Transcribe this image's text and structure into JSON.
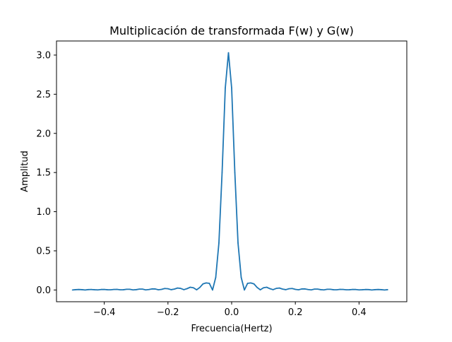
{
  "chart_data": {
    "type": "line",
    "title": "Multiplicación de transformada F(w) y G(w)",
    "xlabel": "Frecuencia(Hertz)",
    "ylabel": "Amplitud",
    "xlim": [
      -0.55,
      0.55
    ],
    "ylim": [
      -0.15,
      3.18
    ],
    "xticks": [
      -0.4,
      -0.2,
      0.0,
      0.2,
      0.4
    ],
    "xtick_labels": [
      "−0.4",
      "−0.2",
      "0.0",
      "0.2",
      "0.4"
    ],
    "yticks": [
      0.0,
      0.5,
      1.0,
      1.5,
      2.0,
      2.5,
      3.0
    ],
    "ytick_labels": [
      "0.0",
      "0.5",
      "1.0",
      "1.5",
      "2.0",
      "2.5",
      "3.0"
    ],
    "grid": false,
    "legend": "none",
    "series": [
      {
        "color": "#1f77b4",
        "x": [
          -0.5,
          -0.49,
          -0.48,
          -0.47,
          -0.46,
          -0.45,
          -0.44,
          -0.43,
          -0.42,
          -0.41,
          -0.4,
          -0.39,
          -0.38,
          -0.37,
          -0.36,
          -0.35,
          -0.34,
          -0.33,
          -0.32,
          -0.31,
          -0.3,
          -0.29,
          -0.28,
          -0.27,
          -0.26,
          -0.25,
          -0.24,
          -0.23,
          -0.22,
          -0.21,
          -0.2,
          -0.19,
          -0.18,
          -0.17,
          -0.16,
          -0.15,
          -0.14,
          -0.13,
          -0.12,
          -0.11,
          -0.1,
          -0.09,
          -0.08,
          -0.07,
          -0.06,
          -0.05,
          -0.04,
          -0.03,
          -0.02,
          -0.01,
          0.0,
          0.01,
          0.02,
          0.03,
          0.04,
          0.05,
          0.06,
          0.07,
          0.08,
          0.09,
          0.1,
          0.11,
          0.12,
          0.13,
          0.14,
          0.15,
          0.16,
          0.17,
          0.18,
          0.19,
          0.2,
          0.21,
          0.22,
          0.23,
          0.24,
          0.25,
          0.26,
          0.27,
          0.28,
          0.29,
          0.3,
          0.31,
          0.32,
          0.33,
          0.34,
          0.35,
          0.36,
          0.37,
          0.38,
          0.39,
          0.4,
          0.41,
          0.42,
          0.43,
          0.44,
          0.45,
          0.46,
          0.47,
          0.48,
          0.49
        ],
        "y": [
          0.0,
          0.004,
          0.006,
          0.004,
          0.0,
          0.005,
          0.006,
          0.003,
          0.001,
          0.006,
          0.007,
          0.003,
          0.002,
          0.007,
          0.008,
          0.002,
          0.003,
          0.009,
          0.009,
          0.001,
          0.004,
          0.011,
          0.011,
          0.001,
          0.006,
          0.014,
          0.013,
          0.002,
          0.008,
          0.019,
          0.016,
          0.004,
          0.011,
          0.025,
          0.02,
          0.004,
          0.017,
          0.035,
          0.028,
          0.002,
          0.032,
          0.078,
          0.09,
          0.085,
          0.0,
          0.16,
          0.6,
          1.5,
          2.58,
          3.03,
          2.58,
          1.5,
          0.6,
          0.16,
          0.0,
          0.085,
          0.09,
          0.078,
          0.032,
          0.002,
          0.028,
          0.035,
          0.017,
          0.004,
          0.02,
          0.025,
          0.011,
          0.004,
          0.016,
          0.019,
          0.008,
          0.002,
          0.013,
          0.014,
          0.006,
          0.001,
          0.011,
          0.011,
          0.004,
          0.001,
          0.009,
          0.009,
          0.003,
          0.002,
          0.008,
          0.007,
          0.002,
          0.003,
          0.007,
          0.006,
          0.001,
          0.003,
          0.006,
          0.005,
          0.0,
          0.004,
          0.006,
          0.004,
          0.0,
          0.004
        ]
      }
    ]
  }
}
